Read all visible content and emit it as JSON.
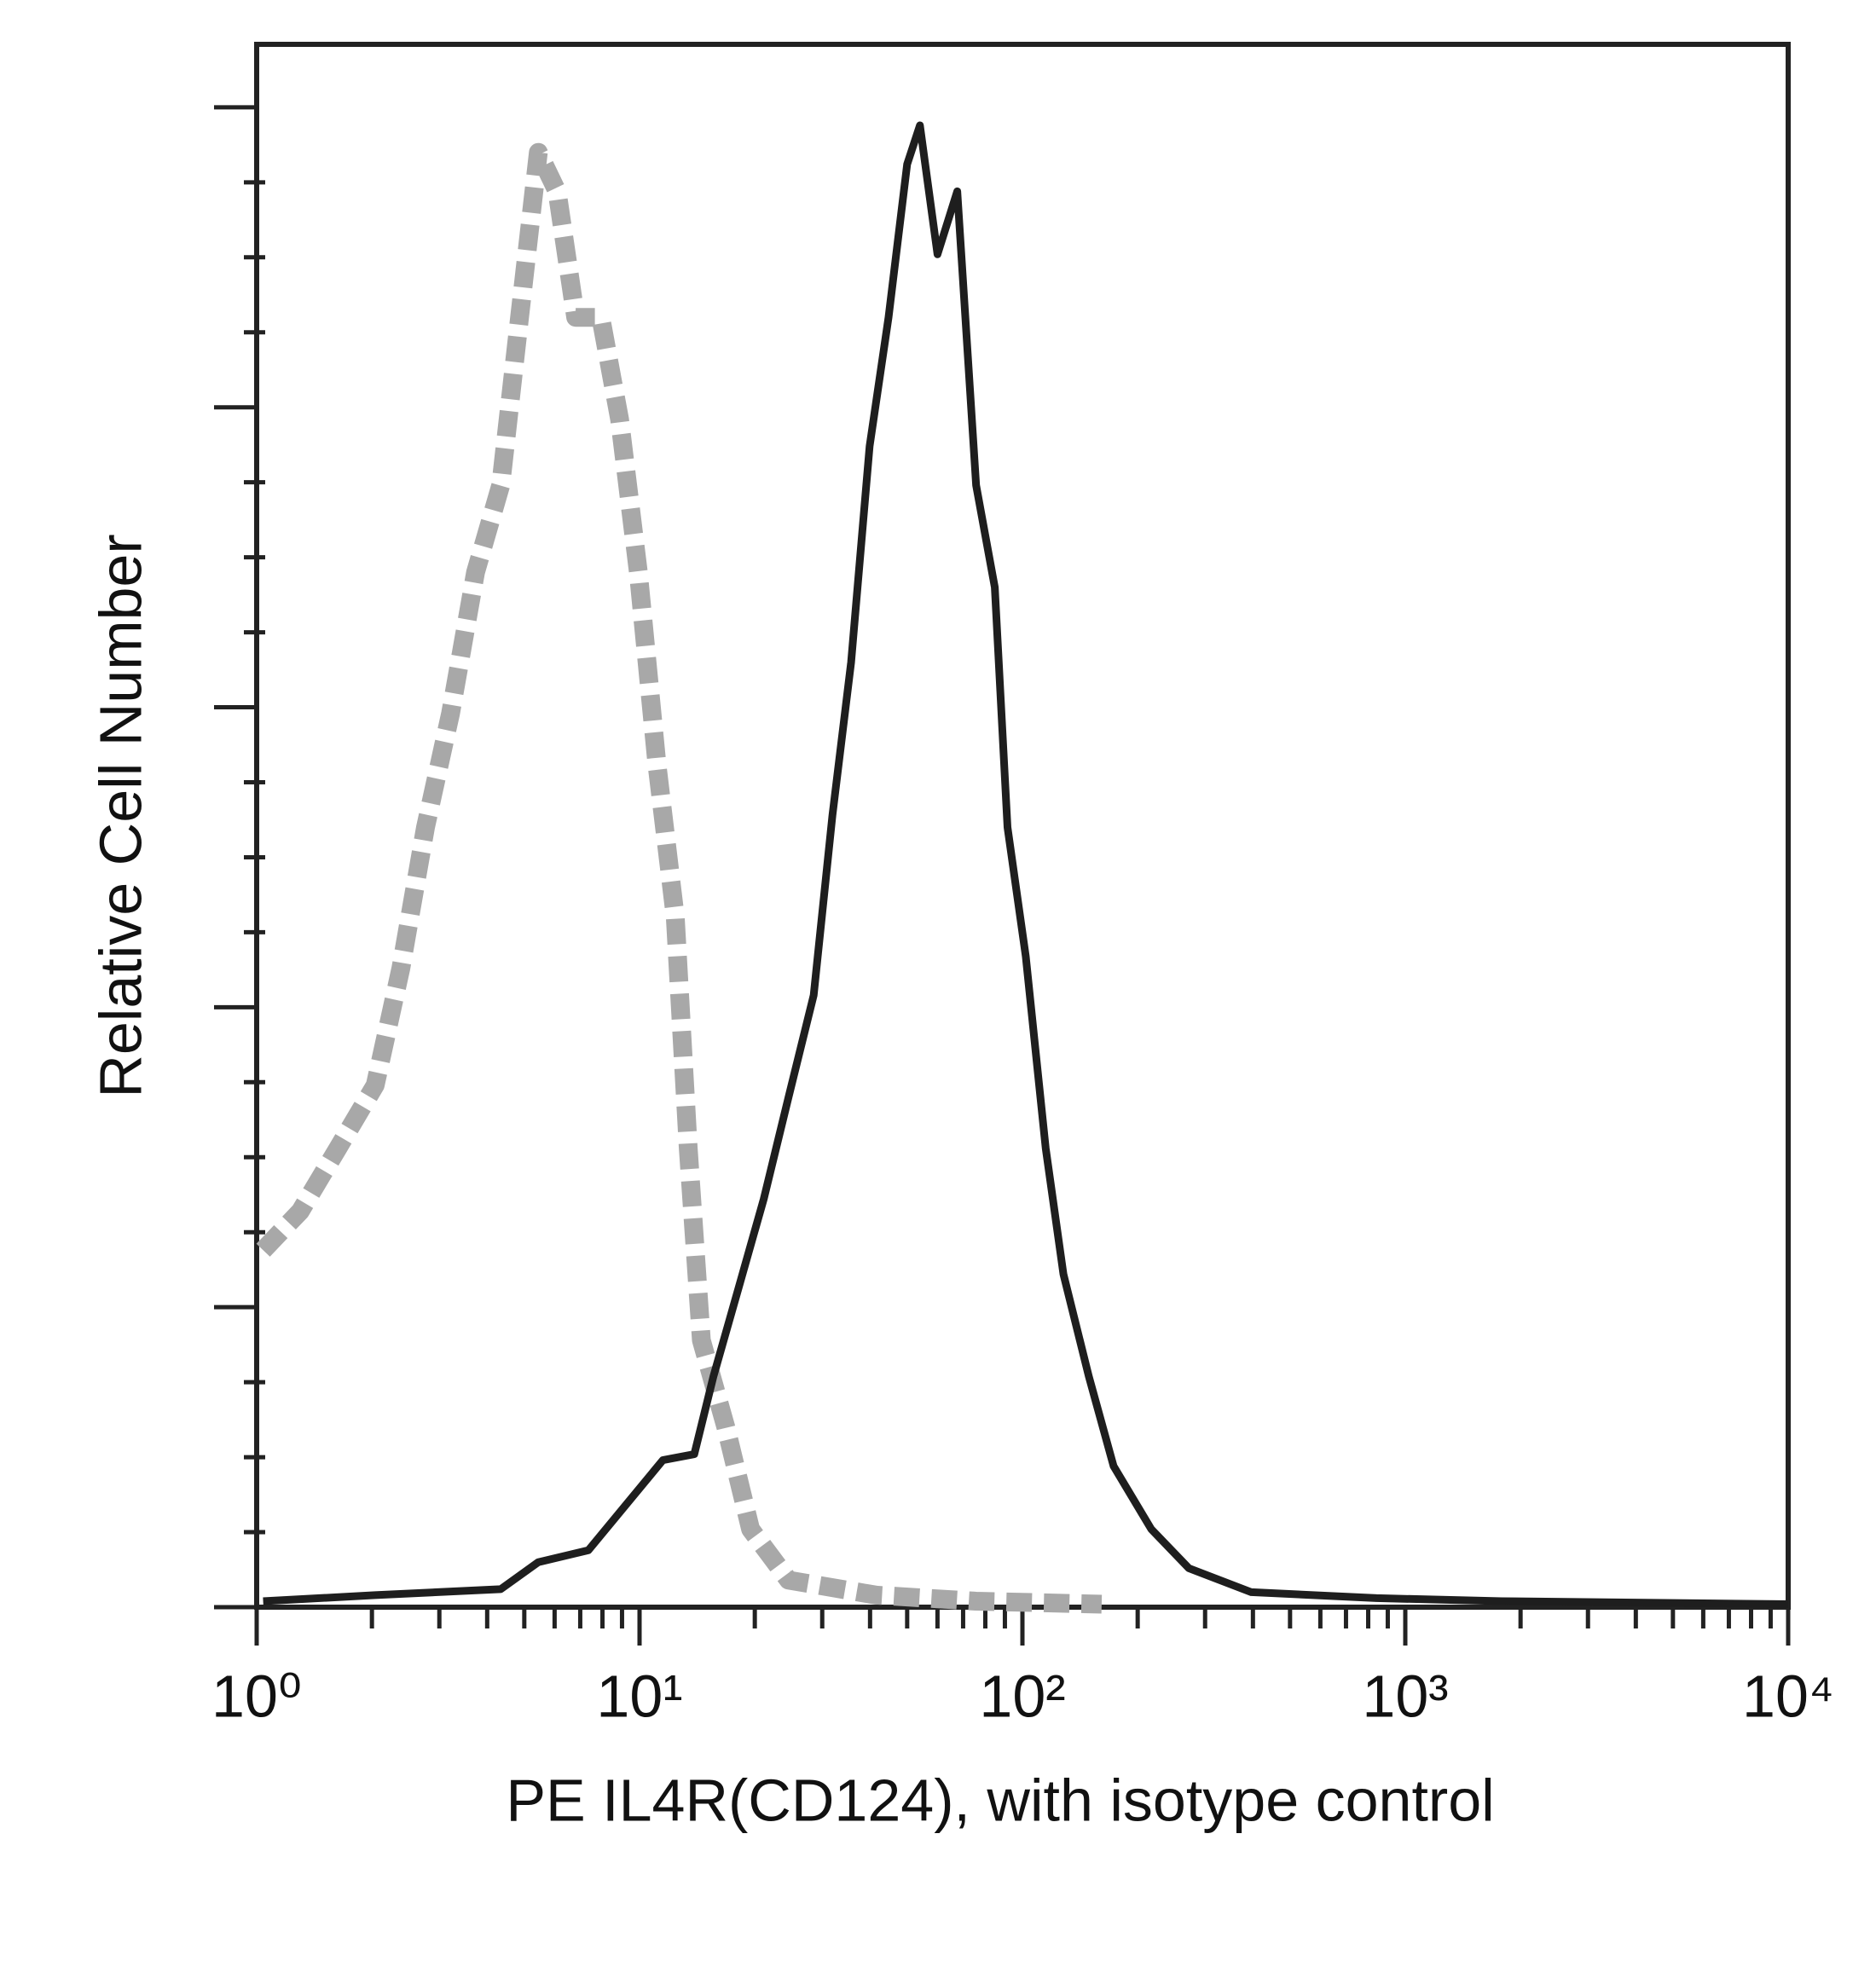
{
  "chart_data": {
    "type": "line",
    "x_label": "PE IL4R(CD124), with isotype control",
    "y_label": "Relative Cell Number",
    "xlog": true,
    "xlim": [
      1,
      10000
    ],
    "xticks": [
      {
        "value": 1,
        "label": "10⁰"
      },
      {
        "value": 10,
        "label": "10¹"
      },
      {
        "value": 100,
        "label": "10²"
      },
      {
        "value": 1000,
        "label": "10³"
      },
      {
        "value": 10000,
        "label": "10⁴"
      }
    ],
    "xminorticks": [
      2,
      3,
      4,
      5,
      6,
      7,
      8,
      9,
      20,
      30,
      40,
      50,
      60,
      70,
      80,
      90,
      200,
      300,
      400,
      500,
      600,
      700,
      800,
      900,
      2000,
      3000,
      4000,
      5000,
      6000,
      7000,
      8000,
      9000
    ],
    "ylim": [
      0,
      5.21
    ],
    "yticks": [
      0,
      1,
      2,
      3,
      4,
      5
    ],
    "yminorticks": [
      0.25,
      0.5,
      0.75,
      1.25,
      1.5,
      1.75,
      2.25,
      2.5,
      2.75,
      3.25,
      3.5,
      3.75,
      4.25,
      4.5,
      4.75
    ],
    "series": [
      {
        "color": "#a8a8a8",
        "dashed": true,
        "x": [
          1.04,
          1.3,
          1.63,
          2.04,
          2.38,
          2.76,
          3.21,
          3.73,
          4.34,
          4.86,
          5.44,
          6.09,
          6.81,
          7.92,
          8.87,
          9.93,
          11.1,
          12.4,
          13.4,
          14.5,
          16.8,
          19.5,
          24.5,
          41.5,
          75.7,
          161
        ],
        "values": [
          1.19,
          1.32,
          1.53,
          1.74,
          2.13,
          2.6,
          2.98,
          3.45,
          3.74,
          4.3,
          4.85,
          4.72,
          4.3,
          4.3,
          3.96,
          3.45,
          2.81,
          2.3,
          1.53,
          0.89,
          0.6,
          0.26,
          0.09,
          0.04,
          0.02,
          0.01
        ]
      },
      {
        "color": "#1e1e1e",
        "dashed": false,
        "x": [
          1.04,
          2.04,
          4.34,
          5.44,
          7.35,
          9.2,
          11.5,
          13.9,
          15.6,
          18.1,
          21.1,
          24.5,
          28.5,
          31.9,
          35.7,
          39.9,
          44.7,
          50,
          54,
          60,
          67.6,
          75.7,
          84.7,
          91.4,
          102,
          115,
          128,
          149,
          173,
          217,
          272,
          396,
          841,
          1786,
          10000
        ],
        "values": [
          0.02,
          0.04,
          0.06,
          0.15,
          0.19,
          0.34,
          0.49,
          0.51,
          0.77,
          1.06,
          1.36,
          1.7,
          2.04,
          2.64,
          3.15,
          3.87,
          4.3,
          4.81,
          4.94,
          4.51,
          4.72,
          3.74,
          3.4,
          2.6,
          2.17,
          1.53,
          1.11,
          0.77,
          0.47,
          0.26,
          0.13,
          0.05,
          0.03,
          0.02,
          0.01
        ]
      }
    ]
  }
}
